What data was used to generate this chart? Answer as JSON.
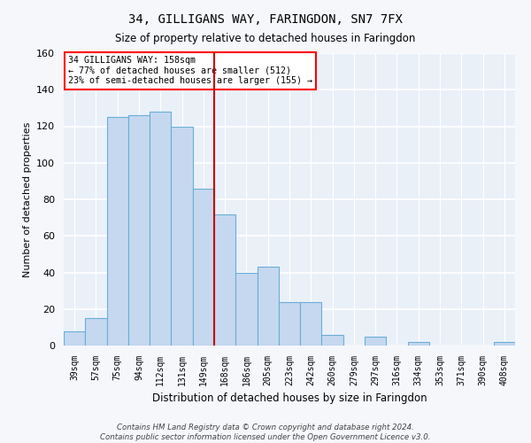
{
  "title": "34, GILLIGANS WAY, FARINGDON, SN7 7FX",
  "subtitle": "Size of property relative to detached houses in Faringdon",
  "xlabel": "Distribution of detached houses by size in Faringdon",
  "ylabel": "Number of detached properties",
  "categories": [
    "39sqm",
    "57sqm",
    "75sqm",
    "94sqm",
    "112sqm",
    "131sqm",
    "149sqm",
    "168sqm",
    "186sqm",
    "205sqm",
    "223sqm",
    "242sqm",
    "260sqm",
    "279sqm",
    "297sqm",
    "316sqm",
    "334sqm",
    "353sqm",
    "371sqm",
    "390sqm",
    "408sqm"
  ],
  "values": [
    8,
    15,
    125,
    126,
    128,
    120,
    86,
    72,
    40,
    43,
    24,
    24,
    6,
    0,
    5,
    0,
    2,
    0,
    0,
    0,
    2
  ],
  "bar_color": "#c5d8f0",
  "bar_edge_color": "#6aaed6",
  "bg_color": "#eaf0f8",
  "grid_color": "#ffffff",
  "vline_color": "#cc0000",
  "annotation_text_line1": "34 GILLIGANS WAY: 158sqm",
  "annotation_text_line2": "← 77% of detached houses are smaller (512)",
  "annotation_text_line3": "23% of semi-detached houses are larger (155) →",
  "footnote": "Contains HM Land Registry data © Crown copyright and database right 2024.\nContains public sector information licensed under the Open Government Licence v3.0.",
  "fig_bg_color": "#f5f7fb",
  "ylim": [
    0,
    160
  ],
  "yticks": [
    0,
    20,
    40,
    60,
    80,
    100,
    120,
    140,
    160
  ]
}
